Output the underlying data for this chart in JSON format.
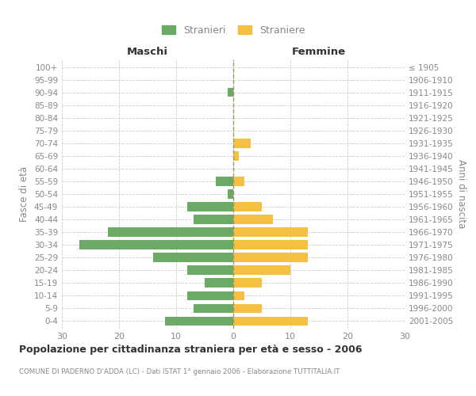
{
  "age_groups": [
    "0-4",
    "5-9",
    "10-14",
    "15-19",
    "20-24",
    "25-29",
    "30-34",
    "35-39",
    "40-44",
    "45-49",
    "50-54",
    "55-59",
    "60-64",
    "65-69",
    "70-74",
    "75-79",
    "80-84",
    "85-89",
    "90-94",
    "95-99",
    "100+"
  ],
  "birth_years": [
    "2001-2005",
    "1996-2000",
    "1991-1995",
    "1986-1990",
    "1981-1985",
    "1976-1980",
    "1971-1975",
    "1966-1970",
    "1961-1965",
    "1956-1960",
    "1951-1955",
    "1946-1950",
    "1941-1945",
    "1936-1940",
    "1931-1935",
    "1926-1930",
    "1921-1925",
    "1916-1920",
    "1911-1915",
    "1906-1910",
    "≤ 1905"
  ],
  "maschi": [
    12,
    7,
    8,
    5,
    8,
    14,
    27,
    22,
    7,
    8,
    1,
    3,
    0,
    0,
    0,
    0,
    0,
    0,
    1,
    0,
    0
  ],
  "femmine": [
    13,
    5,
    2,
    5,
    10,
    13,
    13,
    13,
    7,
    5,
    0,
    2,
    0,
    1,
    3,
    0,
    0,
    0,
    0,
    0,
    0
  ],
  "maschi_color": "#6aaa64",
  "femmine_color": "#f5bf42",
  "bar_height": 0.72,
  "xlim": 30,
  "title": "Popolazione per cittadinanza straniera per età e sesso - 2006",
  "subtitle": "COMUNE DI PADERNO D'ADDA (LC) - Dati ISTAT 1° gennaio 2006 - Elaborazione TUTTITALIA.IT",
  "ylabel_left": "Fasce di età",
  "ylabel_right": "Anni di nascita",
  "header_left": "Maschi",
  "header_right": "Femmine",
  "legend_maschi": "Stranieri",
  "legend_femmine": "Straniere",
  "background_color": "#ffffff",
  "grid_color": "#cccccc",
  "center_line_color": "#999966",
  "label_color": "#888888",
  "title_color": "#333333"
}
